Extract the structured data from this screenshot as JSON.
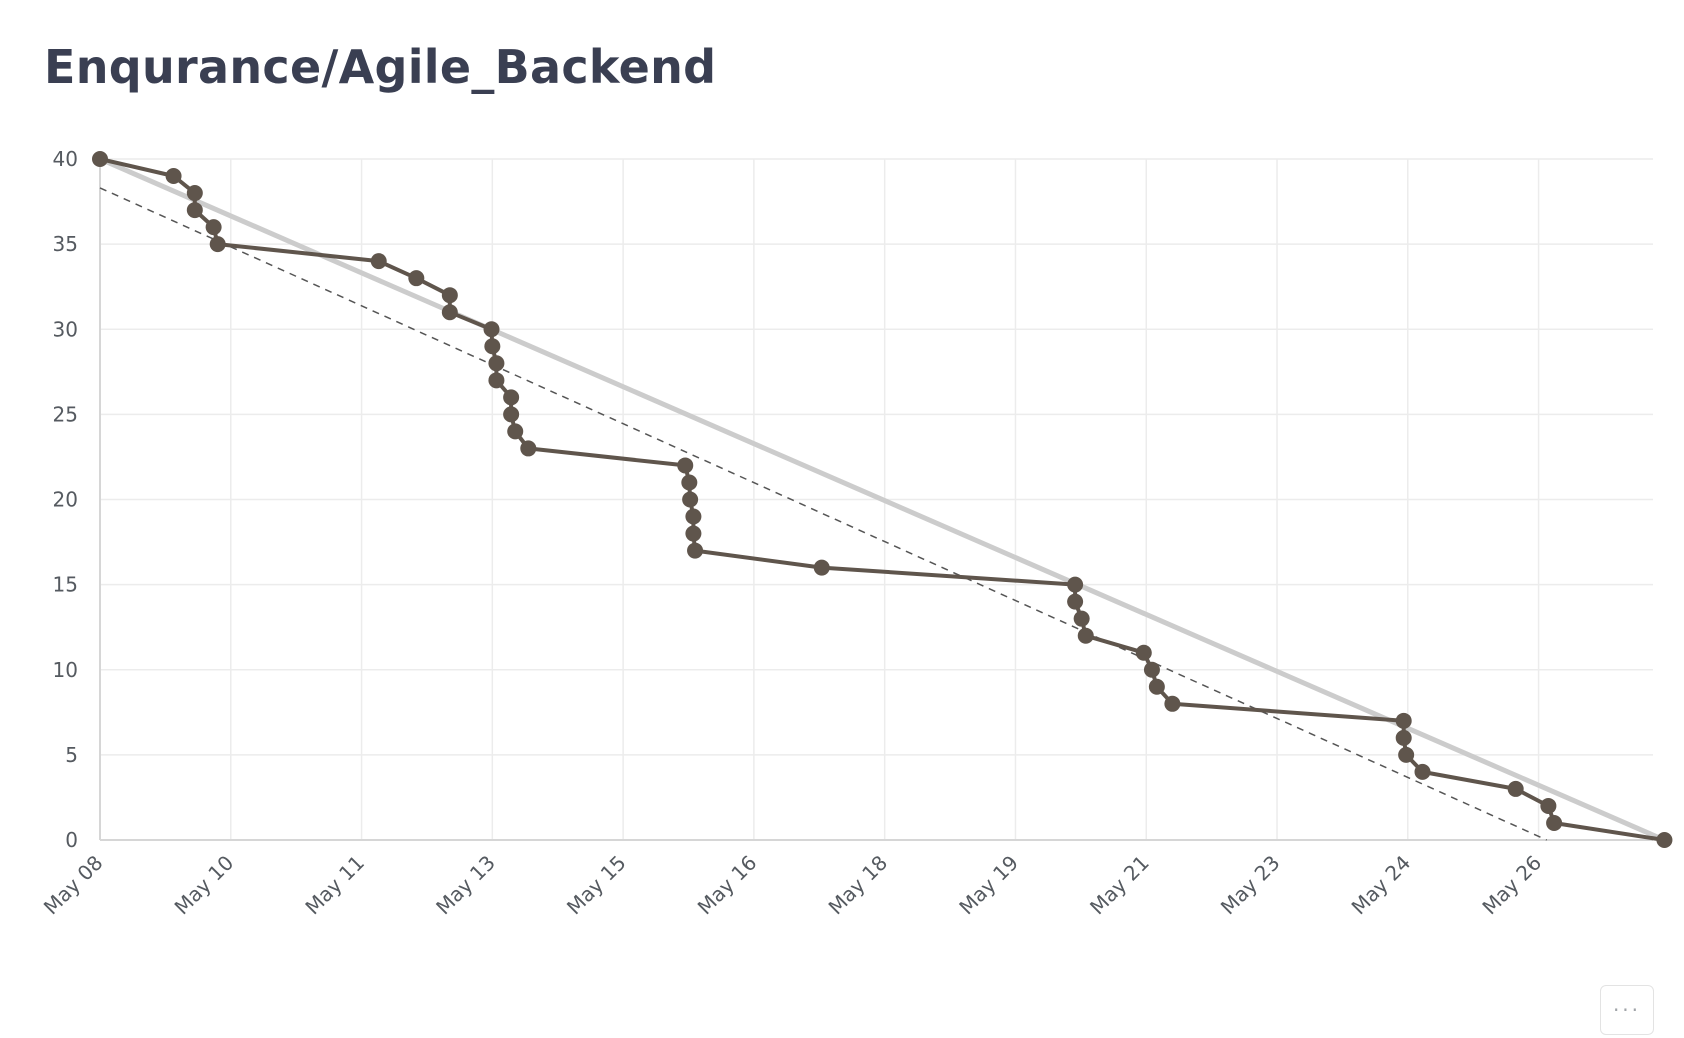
{
  "header": {
    "title": "Enqurance/Agile_Backend"
  },
  "menu": {
    "more_label": "···",
    "more_icon": "more-horizontal-icon"
  },
  "colors": {
    "actual": "#5f554c",
    "ideal": "#cccccc",
    "trend": "#555555",
    "grid": "#ececec",
    "text": "#3a3f52"
  },
  "chart_data": {
    "type": "line",
    "title": "",
    "xlabel": "",
    "ylabel": "",
    "ylim": [
      0,
      40
    ],
    "yticks": [
      0,
      5,
      10,
      15,
      20,
      25,
      30,
      35,
      40
    ],
    "xlim": [
      0,
      19.0
    ],
    "x_unit": "days from May 08",
    "xtick_labels": [
      "May 08",
      "May 10",
      "May 11",
      "May 13",
      "May 15",
      "May 16",
      "May 18",
      "May 19",
      "May 21",
      "May 23",
      "May 24",
      "May 26"
    ],
    "xtick_positions": [
      0,
      1.6,
      3.2,
      4.8,
      6.4,
      8.0,
      9.6,
      11.2,
      12.8,
      14.4,
      16.0,
      17.6
    ],
    "grid": true,
    "legend": "none",
    "series": [
      {
        "role": "actual",
        "points": [
          [
            0.0,
            40
          ],
          [
            0.9,
            39
          ],
          [
            1.16,
            38
          ],
          [
            1.16,
            37
          ],
          [
            1.39,
            36
          ],
          [
            1.44,
            35
          ],
          [
            3.41,
            34
          ],
          [
            3.87,
            33
          ],
          [
            4.28,
            32
          ],
          [
            4.28,
            31
          ],
          [
            4.79,
            30
          ],
          [
            4.8,
            29
          ],
          [
            4.85,
            28
          ],
          [
            4.85,
            27
          ],
          [
            5.03,
            26
          ],
          [
            5.03,
            25
          ],
          [
            5.08,
            24
          ],
          [
            5.24,
            23
          ],
          [
            7.16,
            22
          ],
          [
            7.21,
            21
          ],
          [
            7.22,
            20
          ],
          [
            7.26,
            19
          ],
          [
            7.26,
            18
          ],
          [
            7.28,
            17
          ],
          [
            8.83,
            16
          ],
          [
            11.93,
            15
          ],
          [
            11.93,
            14
          ],
          [
            12.01,
            13
          ],
          [
            12.06,
            12
          ],
          [
            12.77,
            11
          ],
          [
            12.87,
            10
          ],
          [
            12.93,
            9
          ],
          [
            13.12,
            8
          ],
          [
            15.95,
            7
          ],
          [
            15.95,
            6
          ],
          [
            15.98,
            5
          ],
          [
            16.18,
            4
          ],
          [
            17.32,
            3
          ],
          [
            17.72,
            2
          ],
          [
            17.79,
            1
          ],
          [
            19.14,
            0
          ]
        ]
      },
      {
        "role": "ideal",
        "points": [
          [
            0.0,
            40
          ],
          [
            19.14,
            0
          ]
        ]
      },
      {
        "role": "trend",
        "points": [
          [
            0.0,
            38.3
          ],
          [
            17.7,
            0
          ]
        ]
      }
    ]
  }
}
